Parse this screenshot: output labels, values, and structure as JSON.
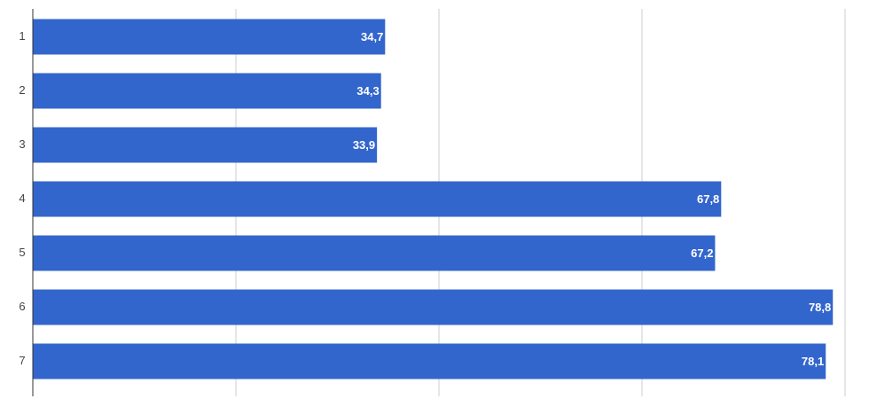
{
  "chart_data": {
    "type": "hbar",
    "categories": [
      "1",
      "2",
      "3",
      "4",
      "5",
      "6",
      "7"
    ],
    "values": [
      34.7,
      34.3,
      33.9,
      67.8,
      67.2,
      78.8,
      78.1
    ],
    "value_labels": [
      "34,7",
      "34,3",
      "33,9",
      "67,8",
      "67,2",
      "78,8",
      "78,1"
    ],
    "color": "#3366cc",
    "xlim": [
      0,
      80
    ],
    "xticks": [
      0,
      20,
      40,
      60,
      80
    ],
    "show_x_tick_labels": false,
    "grid": true
  }
}
